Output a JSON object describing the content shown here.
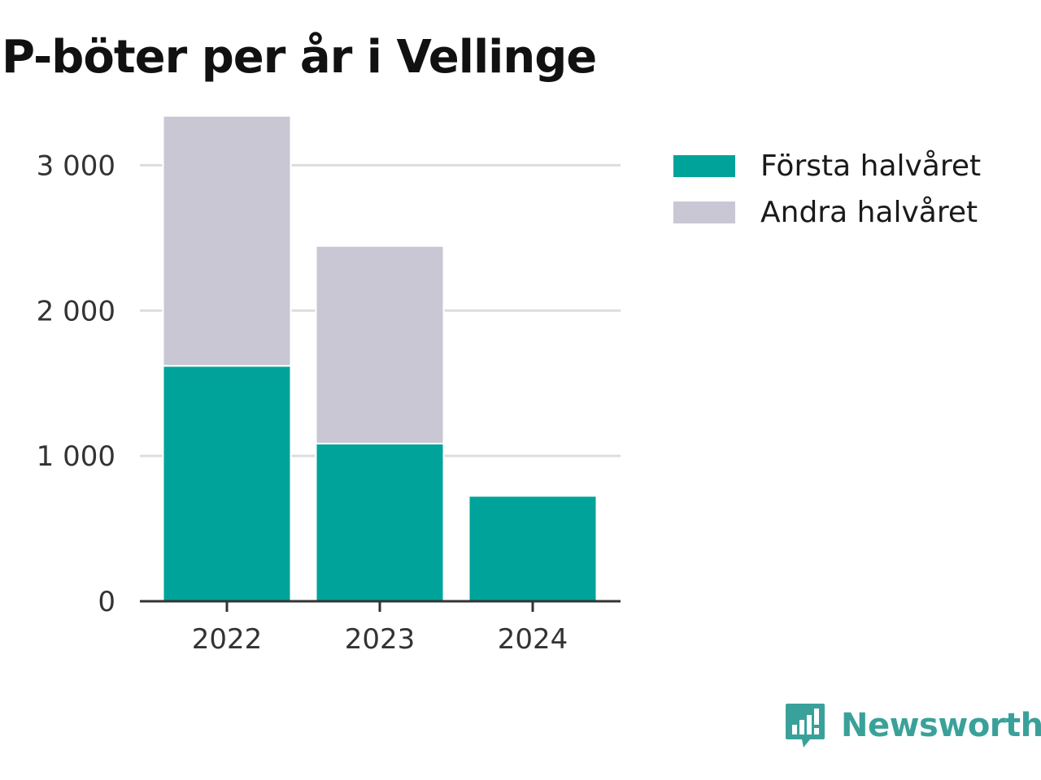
{
  "chart_data": {
    "type": "bar",
    "stacked": true,
    "title": "P-böter per år i Vellinge",
    "categories": [
      "2022",
      "2023",
      "2024"
    ],
    "series": [
      {
        "name": "Första halvåret",
        "values": [
          1620,
          1085,
          725
        ],
        "color": "#00a39a"
      },
      {
        "name": "Andra halvåret",
        "values": [
          1720,
          1360,
          0
        ],
        "color": "#c8c7d3"
      }
    ],
    "y_ticks": [
      0,
      1000,
      2000,
      3000
    ],
    "y_tick_labels": [
      "0",
      "1 000",
      "2 000",
      "3 000"
    ],
    "ylim": [
      0,
      3500
    ],
    "xlabel": "",
    "ylabel": "",
    "grid": true,
    "legend_position": "right"
  },
  "colors": {
    "gridline": "#dddddd",
    "axis": "#333333",
    "brand": "#3aa19a"
  },
  "brand": {
    "name": "Newsworthy",
    "icon": "newsworthy-logo-icon"
  }
}
